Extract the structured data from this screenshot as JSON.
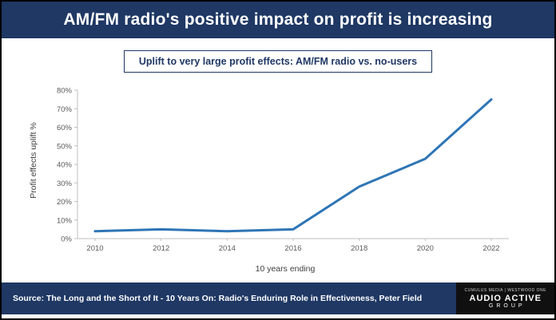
{
  "header": {
    "title": "AM/FM radio's positive impact on profit is increasing"
  },
  "chart_data": {
    "type": "line",
    "title": "Uplift to very large profit effects: AM/FM radio vs. no-users",
    "x": [
      2010,
      2012,
      2014,
      2016,
      2018,
      2020,
      2022
    ],
    "series": [
      {
        "name": "AM/FM radio vs. no-users",
        "values": [
          4,
          5,
          4,
          5,
          28,
          43,
          75
        ]
      }
    ],
    "xlabel": "10 years ending",
    "ylabel": "Profit effects uplift %",
    "ylim": [
      0,
      80
    ],
    "ytick_step": 10,
    "ytick_suffix": "%",
    "grid": false,
    "legend": "none",
    "line_color": "#2E75B6"
  },
  "footer": {
    "source": "Source: The Long and the Short of It - 10 Years On: Radio's Enduring Role in Effectiveness, Peter Field",
    "logo": {
      "partners": "CUMULUS MEDIA | WESTWOOD ONE",
      "title": "AUDIO ACTIVE",
      "subtitle": "GROUP"
    }
  },
  "colors": {
    "navy": "#1F3864",
    "line": "#2E75B6",
    "axis_text": "#595959",
    "logo_bg": "#101010"
  }
}
